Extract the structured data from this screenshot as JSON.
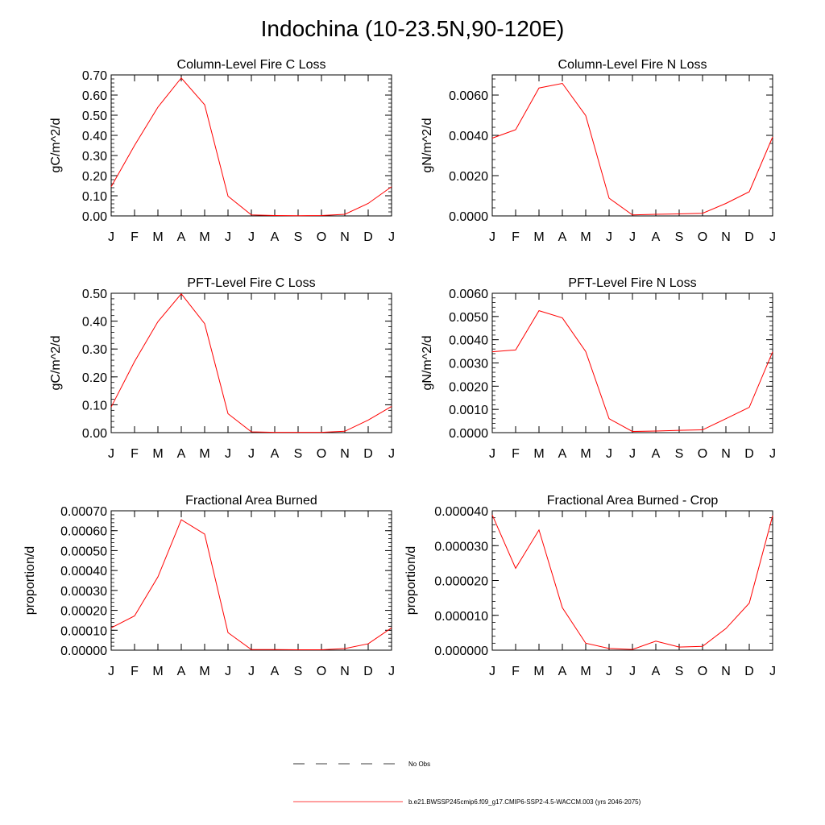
{
  "figure": {
    "title": "Indochina (10-23.5N,90-120E)"
  },
  "colors": {
    "model_line": "#ff0000",
    "obs_line": "#000000",
    "axis": "#000000"
  },
  "legend": {
    "items": [
      {
        "label": "No Obs",
        "style": "dashed",
        "color": "#000000"
      },
      {
        "label": "b.e21.BWSSP245cmip6.f09_g17.CMIP6-SSP2-4.5-WACCM.003 (yrs 2046-2075)",
        "style": "solid",
        "color": "#ff0000"
      }
    ]
  },
  "chart_data": [
    {
      "type": "line",
      "title": "Column-Level Fire C Loss",
      "ylabel": "gC/m^2/d",
      "xlabel": "",
      "categories": [
        "J",
        "F",
        "M",
        "A",
        "M",
        "J",
        "J",
        "A",
        "S",
        "O",
        "N",
        "D",
        "J"
      ],
      "ylim": [
        0,
        0.7
      ],
      "yticks": [
        "0.00",
        "0.10",
        "0.20",
        "0.30",
        "0.40",
        "0.50",
        "0.60",
        "0.70"
      ],
      "ytick_values": [
        0,
        0.1,
        0.2,
        0.3,
        0.4,
        0.5,
        0.6,
        0.7
      ],
      "grid": false,
      "series": [
        {
          "values": [
            0.145,
            0.35,
            0.54,
            0.685,
            0.552,
            0.098,
            0.005,
            0.002,
            0.001,
            0.002,
            0.008,
            0.062,
            0.145
          ]
        }
      ]
    },
    {
      "type": "line",
      "title": "Column-Level Fire N Loss",
      "ylabel": "gN/m^2/d",
      "xlabel": "",
      "categories": [
        "J",
        "F",
        "M",
        "A",
        "M",
        "J",
        "J",
        "A",
        "S",
        "O",
        "N",
        "D",
        "J"
      ],
      "ylim": [
        0,
        0.007
      ],
      "yticks": [
        "0.0000",
        "0.0020",
        "0.0040",
        "0.0060"
      ],
      "ytick_values": [
        0,
        0.002,
        0.004,
        0.006
      ],
      "grid": false,
      "series": [
        {
          "values": [
            0.00386,
            0.00428,
            0.00635,
            0.00658,
            0.00498,
            0.00088,
            5e-05,
            8e-05,
            0.0001,
            0.00013,
            0.00062,
            0.0012,
            0.00392
          ]
        }
      ]
    },
    {
      "type": "line",
      "title": "PFT-Level Fire C Loss",
      "ylabel": "gC/m^2/d",
      "xlabel": "",
      "categories": [
        "J",
        "F",
        "M",
        "A",
        "M",
        "J",
        "J",
        "A",
        "S",
        "O",
        "N",
        "D",
        "J"
      ],
      "ylim": [
        0,
        0.5
      ],
      "yticks": [
        "0.00",
        "0.10",
        "0.20",
        "0.30",
        "0.40",
        "0.50"
      ],
      "ytick_values": [
        0,
        0.1,
        0.2,
        0.3,
        0.4,
        0.5
      ],
      "grid": false,
      "series": [
        {
          "values": [
            0.092,
            0.255,
            0.398,
            0.498,
            0.391,
            0.068,
            0.003,
            0.001,
            0.001,
            0.001,
            0.005,
            0.045,
            0.094
          ]
        }
      ]
    },
    {
      "type": "line",
      "title": "PFT-Level Fire N Loss",
      "ylabel": "gN/m^2/d",
      "xlabel": "",
      "categories": [
        "J",
        "F",
        "M",
        "A",
        "M",
        "J",
        "J",
        "A",
        "S",
        "O",
        "N",
        "D",
        "J"
      ],
      "ylim": [
        0,
        0.006
      ],
      "yticks": [
        "0.0000",
        "0.0010",
        "0.0020",
        "0.0030",
        "0.0040",
        "0.0050",
        "0.0060"
      ],
      "ytick_values": [
        0,
        0.001,
        0.002,
        0.003,
        0.004,
        0.005,
        0.006
      ],
      "grid": false,
      "series": [
        {
          "values": [
            0.00348,
            0.00356,
            0.00525,
            0.00494,
            0.00349,
            0.0006,
            5e-05,
            7e-05,
            0.0001,
            0.00012,
            0.0006,
            0.00109,
            0.00348
          ]
        }
      ]
    },
    {
      "type": "line",
      "title": "Fractional Area Burned",
      "ylabel": "proportion/d",
      "xlabel": "",
      "categories": [
        "J",
        "F",
        "M",
        "A",
        "M",
        "J",
        "J",
        "A",
        "S",
        "O",
        "N",
        "D",
        "J"
      ],
      "ylim": [
        0,
        0.0007
      ],
      "yticks": [
        "0.00000",
        "0.00010",
        "0.00020",
        "0.00030",
        "0.00040",
        "0.00050",
        "0.00060",
        "0.00070"
      ],
      "ytick_values": [
        0,
        0.0001,
        0.0002,
        0.0003,
        0.0004,
        0.0005,
        0.0006,
        0.0007
      ],
      "grid": false,
      "series": [
        {
          "values": [
            0.000112,
            0.000172,
            0.000368,
            0.000655,
            0.000583,
            8.8e-05,
            3e-06,
            3e-06,
            2e-06,
            2e-06,
            8e-06,
            3.2e-05,
            0.000112
          ]
        }
      ]
    },
    {
      "type": "line",
      "title": "Fractional Area Burned - Crop",
      "ylabel": "proportion/d",
      "xlabel": "",
      "categories": [
        "J",
        "F",
        "M",
        "A",
        "M",
        "J",
        "J",
        "A",
        "S",
        "O",
        "N",
        "D",
        "J"
      ],
      "ylim": [
        0,
        4e-05
      ],
      "yticks": [
        "0.000000",
        "0.000010",
        "0.000020",
        "0.000030",
        "0.000040"
      ],
      "ytick_values": [
        0,
        1e-05,
        2e-05,
        3e-05,
        4e-05
      ],
      "grid": false,
      "series": [
        {
          "values": [
            3.88e-05,
            2.35e-05,
            3.45e-05,
            1.22e-05,
            2e-06,
            5e-07,
            2e-07,
            2.6e-06,
            9e-07,
            1.1e-06,
            6.2e-06,
            1.35e-05,
            3.86e-05
          ]
        }
      ]
    }
  ]
}
